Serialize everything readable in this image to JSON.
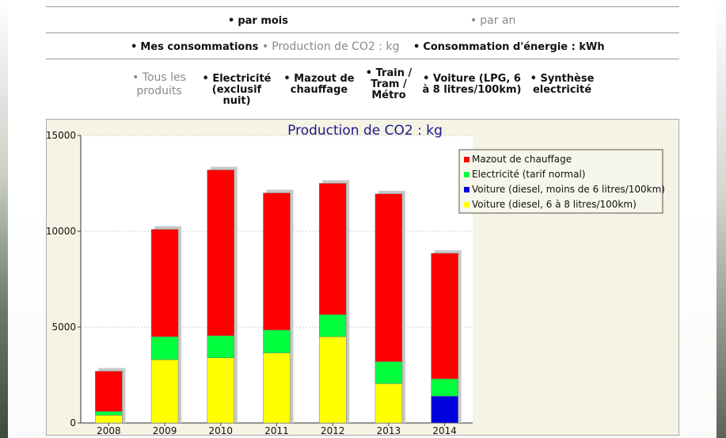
{
  "nav_period": {
    "monthly": "par mois",
    "yearly": "par an"
  },
  "nav_metric": {
    "consumption": "Mes consommations",
    "co2": "Production de CO2 : kg",
    "energy": "Consommation d'énergie : kWh"
  },
  "products": {
    "all": [
      "Tous les",
      "produits"
    ],
    "electricity": [
      "Electricité",
      "(exclusif nuit)"
    ],
    "heating": [
      "Mazout de",
      "chauffage"
    ],
    "train": [
      "Train /",
      "Tram /",
      "Métro"
    ],
    "car": [
      "Voiture (LPG, 6",
      "à 8 litres/100km)"
    ],
    "summary": [
      "Synthèse",
      "electricité"
    ]
  },
  "colors": {
    "mazout": "#ff0000",
    "electricite": "#00ff3c",
    "voiture_diesel_small": "#0000dd",
    "voiture_diesel": "#ffff00",
    "title": "#1a1a8c"
  },
  "chart_data": {
    "type": "bar",
    "stacked": true,
    "title": "Production de CO2 : kg",
    "categories": [
      "2008",
      "2009",
      "2010",
      "2011",
      "2012",
      "2013",
      "2014"
    ],
    "ylim": [
      0,
      15000
    ],
    "yticks": [
      "0",
      "5000",
      "10000",
      "15000"
    ],
    "grid": true,
    "legend_position": "top-right",
    "series": [
      {
        "name": "Voiture (diesel, 6 à 8 litres/100km)",
        "color": "#ffff00",
        "values": [
          400,
          3300,
          3400,
          3650,
          4500,
          2050,
          0
        ]
      },
      {
        "name": "Voiture (diesel, moins de 6 litres/100km)",
        "color": "#0000dd",
        "values": [
          0,
          0,
          0,
          0,
          0,
          0,
          1400
        ]
      },
      {
        "name": "Electricité (tarif normal)",
        "color": "#00ff3c",
        "values": [
          200,
          1200,
          1150,
          1200,
          1150,
          1150,
          900
        ]
      },
      {
        "name": "Mazout de chauffage",
        "color": "#ff0000",
        "values": [
          2100,
          5600,
          8650,
          7150,
          6850,
          8750,
          6550
        ]
      }
    ],
    "legend_order": [
      "Mazout de chauffage",
      "Electricité (tarif normal)",
      "Voiture (diesel, moins de 6 litres/100km)",
      "Voiture (diesel, 6 à 8 litres/100km)"
    ]
  }
}
